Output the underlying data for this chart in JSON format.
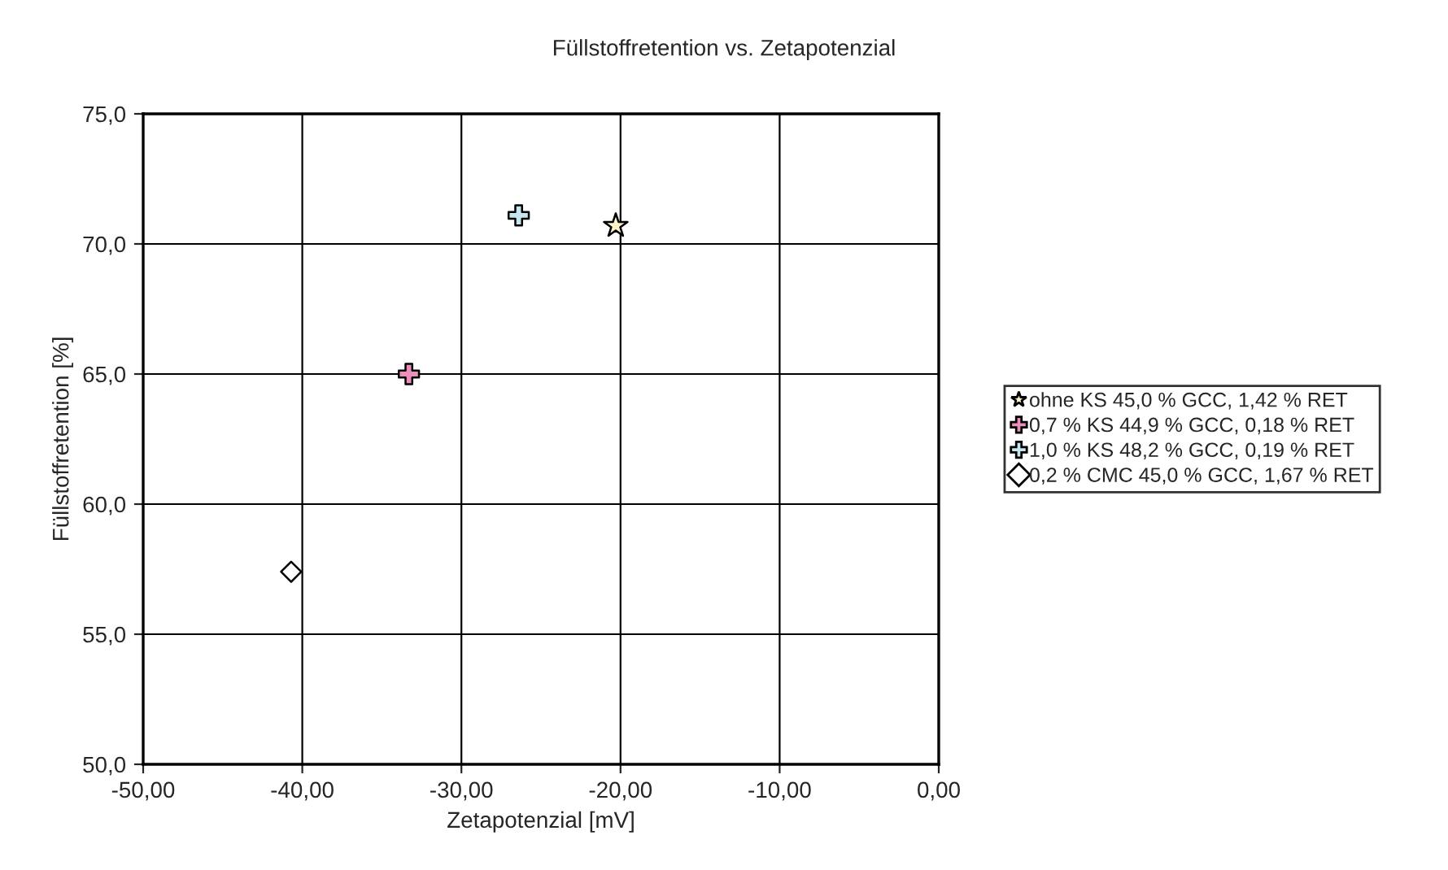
{
  "chart_data": {
    "type": "scatter",
    "title": "Füllstoffretention vs. Zetapotenzial",
    "xlabel": "Zetapotenzial [mV]",
    "ylabel": "Füllstoffretention [%]",
    "series": [
      {
        "name": "ohne KS 45,0 % GCC, 1,42 % RET",
        "color": "#fbf3c8",
        "marker": "star",
        "x": [
          -20.3
        ],
        "values": [
          70.7
        ]
      },
      {
        "name": "0,7 % KS 44,9 % GCC, 0,18 % RET",
        "color": "#ec8fba",
        "marker": "cross",
        "x": [
          -33.3
        ],
        "values": [
          65.0
        ]
      },
      {
        "name": "1,0 % KS 48,2 % GCC, 0,19 % RET",
        "color": "#c7e6f0",
        "marker": "cross",
        "x": [
          -26.4
        ],
        "values": [
          71.1
        ]
      },
      {
        "name": "0,2 % CMC 45,0 % GCC, 1,67 % RET",
        "color": "#ffffff",
        "marker": "diamond",
        "x": [
          -40.7
        ],
        "values": [
          57.4
        ]
      }
    ],
    "xlim": [
      -50,
      0
    ],
    "xticks": [
      {
        "value": -50,
        "label": "-50,00"
      },
      {
        "value": -40,
        "label": "-40,00"
      },
      {
        "value": -30,
        "label": "-30,00"
      },
      {
        "value": -20,
        "label": "-20,00"
      },
      {
        "value": -10,
        "label": "-10,00"
      },
      {
        "value": 0,
        "label": "0,00"
      }
    ],
    "ylim": [
      50,
      75
    ],
    "yticks": [
      {
        "value": 50,
        "label": "50,0"
      },
      {
        "value": 55,
        "label": "55,0"
      },
      {
        "value": 60,
        "label": "60,0"
      },
      {
        "value": 65,
        "label": "65,0"
      },
      {
        "value": 70,
        "label": "70,0"
      },
      {
        "value": 75,
        "label": "75,0"
      }
    ],
    "grid": true,
    "legend": "right"
  }
}
